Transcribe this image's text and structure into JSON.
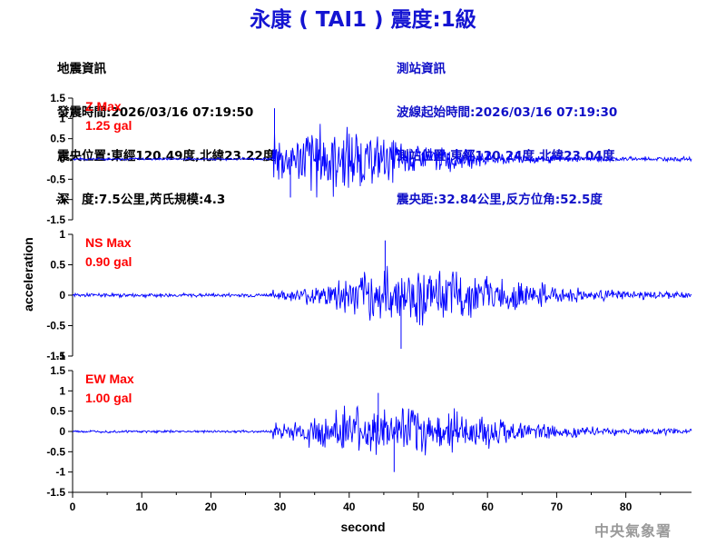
{
  "title": "永康 ( TAI1 ) 震度:1級",
  "earthquake_info": {
    "heading": "地震資訊",
    "origin_time": "發震時間:2026/03/16 07:19:50",
    "epicenter": "震央位置:東經120.49度,北緯23.22度",
    "depth_magnitude": "深　度:7.5公里,芮氏規模:4.3"
  },
  "station_info": {
    "heading": "測站資訊",
    "wave_start_time": "波線起始時間:2026/03/16 07:19:30",
    "station_location": "測站位置:東經120.24度,北緯23.04度",
    "distance_azimuth": "震央距:32.84公里,反方位角:52.5度"
  },
  "watermark": "中央氣象署",
  "colors": {
    "title": "#1414d2",
    "station_info": "#1010c8",
    "trace": "#0000ff",
    "max_label": "#ff0000"
  },
  "chart_data": {
    "type": "line",
    "xlabel": "second",
    "ylabel": "acceleration",
    "x_range": [
      0,
      89.5
    ],
    "x_ticks": [
      "0",
      "10",
      "20",
      "30",
      "40",
      "50",
      "60",
      "70",
      "80"
    ],
    "y_tick_labels": [
      "1",
      "0.5",
      "0",
      "-0.5",
      "-1"
    ],
    "shared_min_label": "-1.5",
    "grid": false,
    "series": [
      {
        "component": "Z",
        "max_label": "Z Max",
        "max_value": "1.25 gal",
        "y_top_label": "1.5",
        "y_range": [
          -1.5,
          1.5
        ],
        "p_arrival": 29,
        "peak": 1.25,
        "peak_min": -0.95,
        "decay": [
          0.55,
          0.85,
          0.7,
          0.5,
          0.38,
          0.28,
          0.2,
          0.14,
          0.1,
          0.07,
          0.06,
          0.05,
          0.05,
          0.05
        ]
      },
      {
        "component": "NS",
        "max_label": "NS Max",
        "max_value": "0.90 gal",
        "y_top_label": "1",
        "y_range": [
          -1,
          1
        ],
        "p_arrival": 29,
        "peak": 0.9,
        "peak_min": -0.88,
        "decay": [
          0.12,
          0.25,
          0.45,
          0.6,
          0.62,
          0.55,
          0.45,
          0.35,
          0.25,
          0.18,
          0.12,
          0.1,
          0.08,
          0.07
        ]
      },
      {
        "component": "EW",
        "max_label": "EW Max",
        "max_value": "1.00 gal",
        "y_top_label": "1.5",
        "y_range": [
          -1.5,
          1.5
        ],
        "p_arrival": 29,
        "peak": 0.95,
        "peak_min": -1.0,
        "decay": [
          0.2,
          0.35,
          0.55,
          0.5,
          0.55,
          0.45,
          0.35,
          0.25,
          0.18,
          0.13,
          0.1,
          0.08,
          0.07,
          0.06
        ]
      }
    ]
  }
}
